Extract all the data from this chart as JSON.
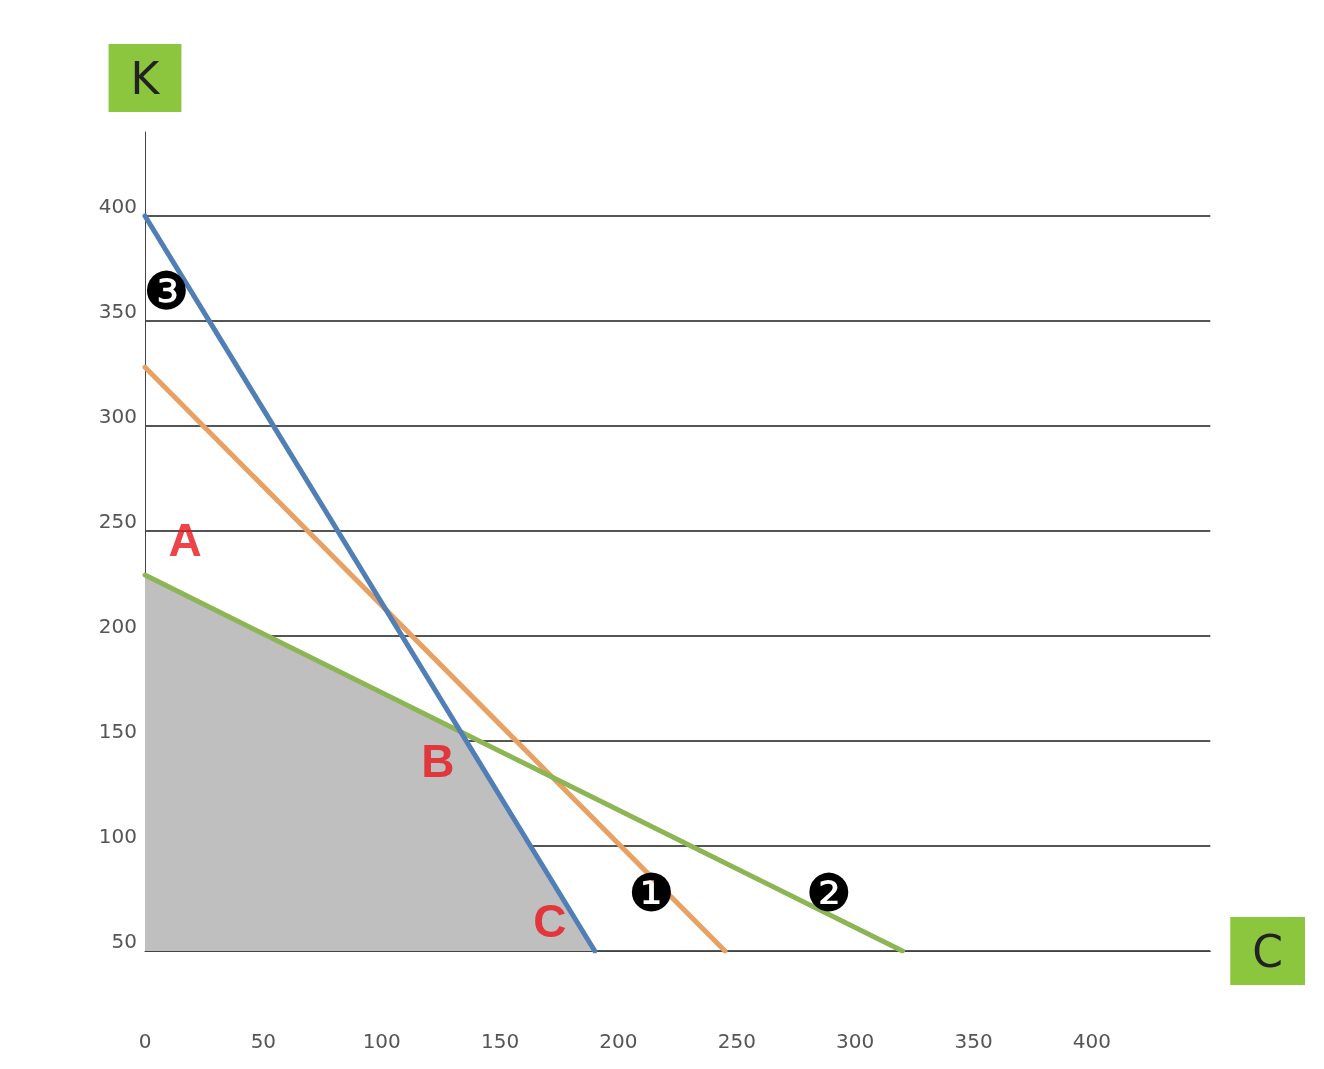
{
  "chart_data": {
    "type": "line",
    "xlabel": "C",
    "ylabel": "K",
    "xlim": [
      0,
      450
    ],
    "xticks": [
      0,
      50,
      100,
      150,
      200,
      250,
      300,
      350,
      400
    ],
    "ylim": [
      50,
      440
    ],
    "yticks": [
      50,
      100,
      150,
      200,
      250,
      300,
      350,
      400
    ],
    "grid": "y",
    "legend": false,
    "marker": "none",
    "line_style": "solid",
    "series": [
      {
        "type": "area",
        "color": "#bfbfbf",
        "x": [
          0,
          0,
          133,
          190
        ],
        "values": [
          50,
          229,
          155,
          50
        ]
      },
      {
        "name": "❶",
        "color": "#e8a063",
        "x": [
          0,
          245
        ],
        "values": [
          328,
          50
        ]
      },
      {
        "name": "❷",
        "color": "#8cb554",
        "x": [
          0,
          320
        ],
        "values": [
          229,
          50
        ]
      },
      {
        "name": "❸",
        "color": "#4f7fb5",
        "x": [
          190,
          0
        ],
        "values": [
          50,
          400
        ]
      }
    ],
    "annotations": [
      {
        "text": "A",
        "x": 0,
        "y": 229
      },
      {
        "text": "B",
        "x": 133,
        "y": 155
      },
      {
        "text": "C",
        "x": 190,
        "y": 50
      }
    ]
  }
}
